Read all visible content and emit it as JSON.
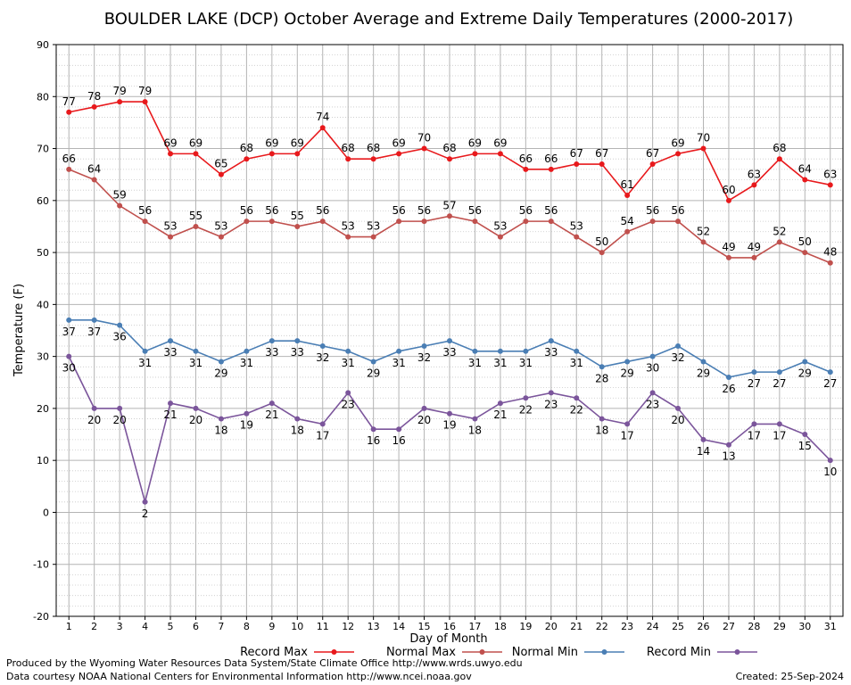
{
  "chart_data": {
    "type": "line",
    "title": "BOULDER LAKE (DCP) October Average and Extreme Daily Temperatures (2000-2017)",
    "xlabel": "Day of Month",
    "ylabel": "Temperature (F)",
    "x": [
      1,
      2,
      3,
      4,
      5,
      6,
      7,
      8,
      9,
      10,
      11,
      12,
      13,
      14,
      15,
      16,
      17,
      18,
      19,
      20,
      21,
      22,
      23,
      24,
      25,
      26,
      27,
      28,
      29,
      30,
      31
    ],
    "ylim": [
      -20,
      90
    ],
    "yticks": [
      -20,
      -10,
      0,
      10,
      20,
      30,
      40,
      50,
      60,
      70,
      80,
      90
    ],
    "grid": true,
    "legend_position": "bottom",
    "series": [
      {
        "name": "Record Max",
        "color": "#e8191c",
        "label_pos": "above",
        "values": [
          77,
          78,
          79,
          79,
          69,
          69,
          65,
          68,
          69,
          69,
          74,
          68,
          68,
          69,
          70,
          68,
          69,
          69,
          66,
          66,
          67,
          67,
          61,
          67,
          69,
          70,
          60,
          63,
          68,
          64,
          63
        ]
      },
      {
        "name": "Normal Max",
        "color": "#c0504d",
        "label_pos": "above",
        "values": [
          66,
          64,
          59,
          56,
          53,
          55,
          53,
          56,
          56,
          55,
          56,
          53,
          53,
          56,
          56,
          57,
          56,
          53,
          56,
          56,
          53,
          50,
          54,
          56,
          56,
          52,
          49,
          49,
          52,
          50,
          48
        ]
      },
      {
        "name": "Normal Min",
        "color": "#4a7eb4",
        "label_pos": "below",
        "values": [
          37,
          37,
          36,
          31,
          33,
          31,
          29,
          31,
          33,
          33,
          32,
          31,
          29,
          31,
          32,
          33,
          31,
          31,
          31,
          33,
          31,
          28,
          29,
          30,
          32,
          29,
          26,
          27,
          27,
          29,
          27
        ]
      },
      {
        "name": "Record Min",
        "color": "#7b559b",
        "label_pos": "below",
        "values": [
          30,
          20,
          20,
          2,
          21,
          20,
          18,
          19,
          21,
          18,
          17,
          23,
          16,
          16,
          20,
          19,
          18,
          21,
          22,
          23,
          22,
          18,
          17,
          23,
          20,
          14,
          13,
          17,
          17,
          15,
          10
        ]
      }
    ]
  },
  "footer": {
    "produced_by": "Produced by the Wyoming Water Resources Data System/State Climate Office http://www.wrds.uwyo.edu",
    "data_courtesy": "Data courtesy NOAA National Centers for Environmental Information http://www.ncei.noaa.gov",
    "created": "Created:  25-Sep-2024"
  }
}
